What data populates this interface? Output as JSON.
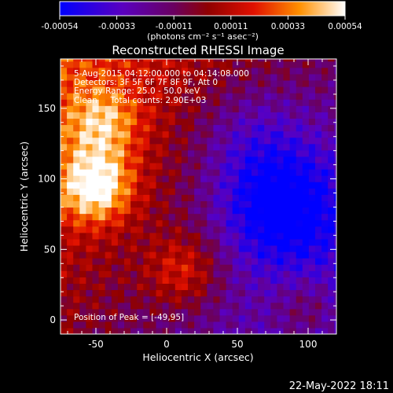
{
  "chart_data": {
    "type": "heatmap",
    "title": "Reconstructed RHESSI Image",
    "xlabel": "Heliocentric X (arcsec)",
    "ylabel": "Heliocentric Y (arcsec)",
    "xlim": [
      -75,
      120
    ],
    "ylim": [
      -10,
      185
    ],
    "x_ticks": [
      -50,
      0,
      50,
      100
    ],
    "y_ticks": [
      0,
      50,
      100,
      150
    ],
    "colorbar": {
      "ticks": [
        "-0.00054",
        "-0.00033",
        "-0.00011",
        "0.00011",
        "0.00033",
        "0.00054"
      ],
      "unit_label": "(photons cm⁻² s⁻¹ asec⁻²)",
      "range": [
        -0.00054,
        0.00054
      ],
      "colors": [
        "#0000ff",
        "#6a00b0",
        "#7a0000",
        "#e01000",
        "#ff8000",
        "#ffffff"
      ]
    },
    "annotations": [
      "5-Aug-2015 04:12:00.000 to 04:14:08.000",
      "Detectors: 3F 5F 6F 7F 8F 9F, Att 0",
      "Energy Range: 25.0 - 50.0 keV",
      "Clean     Total counts: 2.90E+03"
    ],
    "peak_label": "Position of Peak = [-49,95]",
    "peak": [
      -49,
      95
    ],
    "bright_regions": [
      {
        "x": -50,
        "y": 95,
        "value": 0.00054
      },
      {
        "x": -45,
        "y": 140,
        "value": 0.00033
      },
      {
        "x": 12,
        "y": 35,
        "value": 0.00028
      },
      {
        "x": 100,
        "y": 5,
        "value": 0.0002
      }
    ],
    "dim_regions": [
      {
        "x": 80,
        "y": 80,
        "value": -0.00045
      },
      {
        "x": 60,
        "y": 130,
        "value": -0.0002
      }
    ]
  },
  "footer": {
    "date": "22-May-2022 18:11"
  }
}
